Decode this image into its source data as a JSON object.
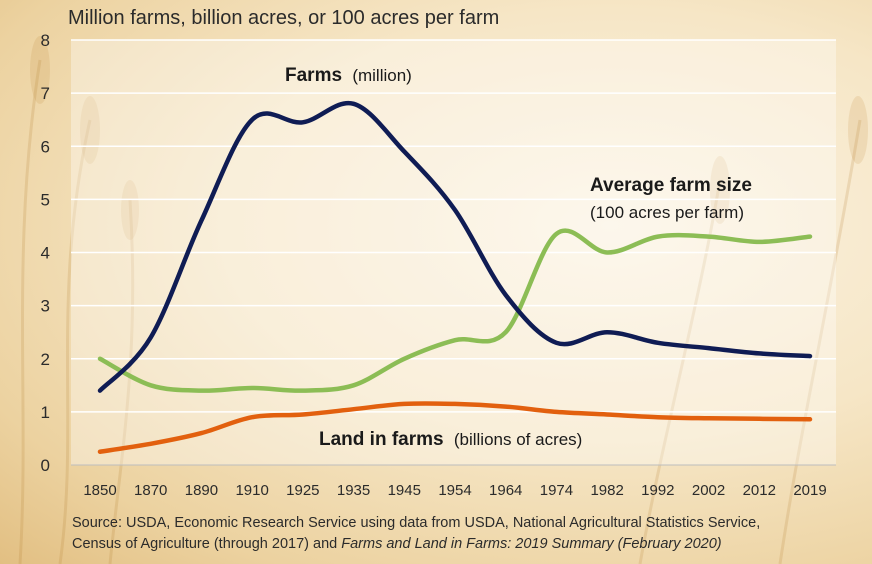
{
  "chart_data": {
    "type": "line",
    "title": "Million farms, billion acres, or 100 acres per farm",
    "xlabel": "",
    "ylabel": "Million farms, billion acres, or 100 acres per farm",
    "ylim": [
      0,
      8
    ],
    "yticks": [
      "0",
      "1",
      "2",
      "3",
      "4",
      "5",
      "6",
      "7",
      "8"
    ],
    "categories": [
      "1850",
      "1870",
      "1890",
      "1910",
      "1925",
      "1935",
      "1945",
      "1954",
      "1964",
      "1974",
      "1982",
      "1992",
      "2002",
      "2012",
      "2019"
    ],
    "grid": true,
    "series": [
      {
        "name": "Farms",
        "unit": "(million)",
        "color": "#0f1c54",
        "values": [
          1.4,
          2.4,
          4.6,
          6.5,
          6.45,
          6.8,
          5.9,
          4.8,
          3.2,
          2.3,
          2.5,
          2.3,
          2.2,
          2.1,
          2.05
        ]
      },
      {
        "name": "Average farm size",
        "unit": "(100 acres per farm)",
        "color": "#8cbd55",
        "values": [
          2.0,
          1.5,
          1.4,
          1.45,
          1.4,
          1.5,
          2.0,
          2.35,
          2.5,
          4.35,
          4.0,
          4.3,
          4.3,
          4.2,
          4.3
        ]
      },
      {
        "name": "Land in farms",
        "unit": "(billions of acres)",
        "color": "#e2600e",
        "values": [
          0.25,
          0.4,
          0.6,
          0.9,
          0.95,
          1.05,
          1.15,
          1.15,
          1.1,
          1.0,
          0.95,
          0.9,
          0.88,
          0.87,
          0.86
        ]
      }
    ]
  },
  "source": {
    "line1": "Source: USDA, Economic Research Service using data from USDA, National Agricultural Statistics Service,",
    "line2_prefix": "Census of Agriculture (through 2017) and ",
    "line2_italic": "Farms and Land in Farms: 2019 Summary (February 2020)"
  }
}
